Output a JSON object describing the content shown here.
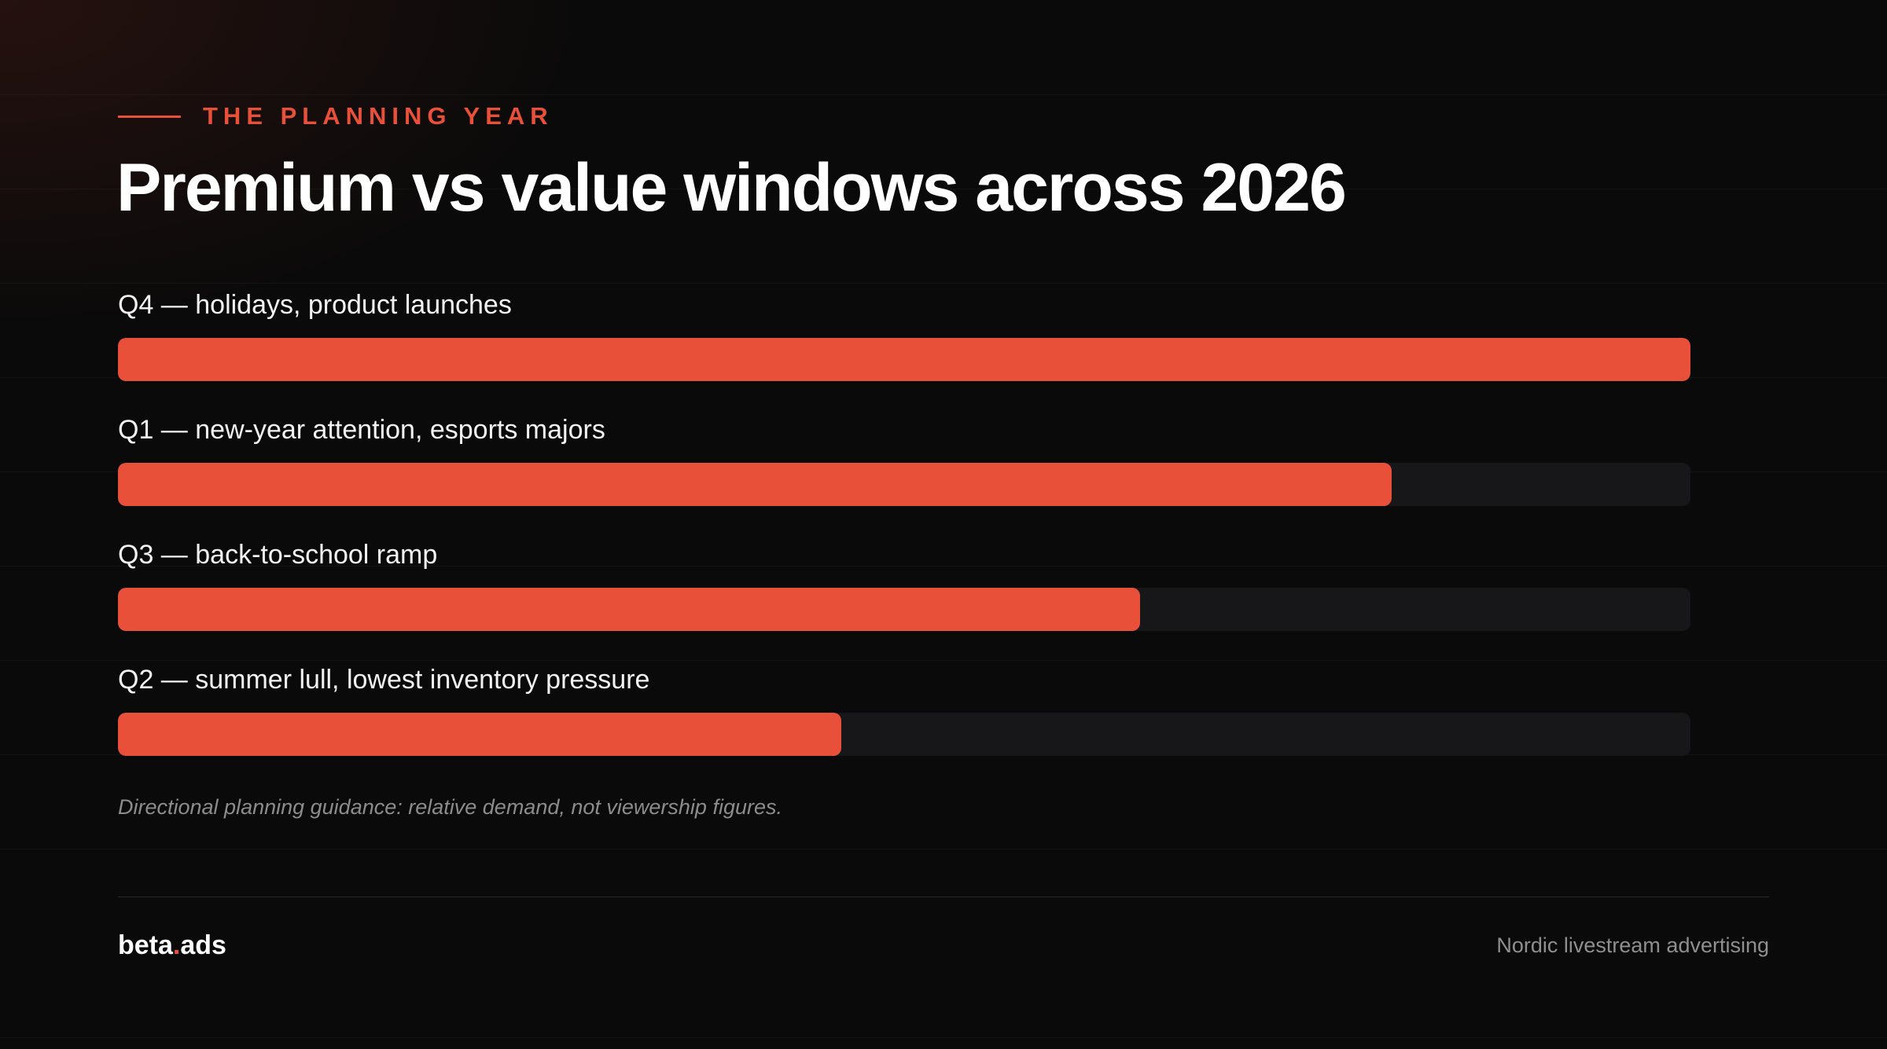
{
  "eyebrow": "THE PLANNING YEAR",
  "title": "Premium vs value windows across 2026",
  "note": "Directional planning guidance: relative demand, not viewership figures.",
  "brand": {
    "name_part1": "beta",
    "dot": ".",
    "name_part2": "ads"
  },
  "tagline": "Nordic livestream advertising",
  "colors": {
    "accent": "#e8503a",
    "track": "#17171a",
    "background": "#0a0a0a"
  },
  "chart_data": {
    "type": "bar",
    "orientation": "horizontal",
    "categories": [
      "Q4 — holidays, product launches",
      "Q1 — new-year attention, esports majors",
      "Q3 — back-to-school ramp",
      "Q2 — summer lull, lowest inventory pressure"
    ],
    "values": [
      100,
      81,
      65,
      46
    ],
    "xlim": [
      0,
      100
    ],
    "grid": false,
    "legend": "none"
  }
}
